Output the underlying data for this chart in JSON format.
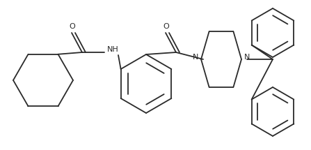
{
  "background_color": "#ffffff",
  "line_color": "#2a2a2a",
  "line_width": 1.3,
  "figsize": [
    4.47,
    2.15
  ],
  "dpi": 100,
  "xlim": [
    0,
    447
  ],
  "ylim": [
    0,
    215
  ]
}
